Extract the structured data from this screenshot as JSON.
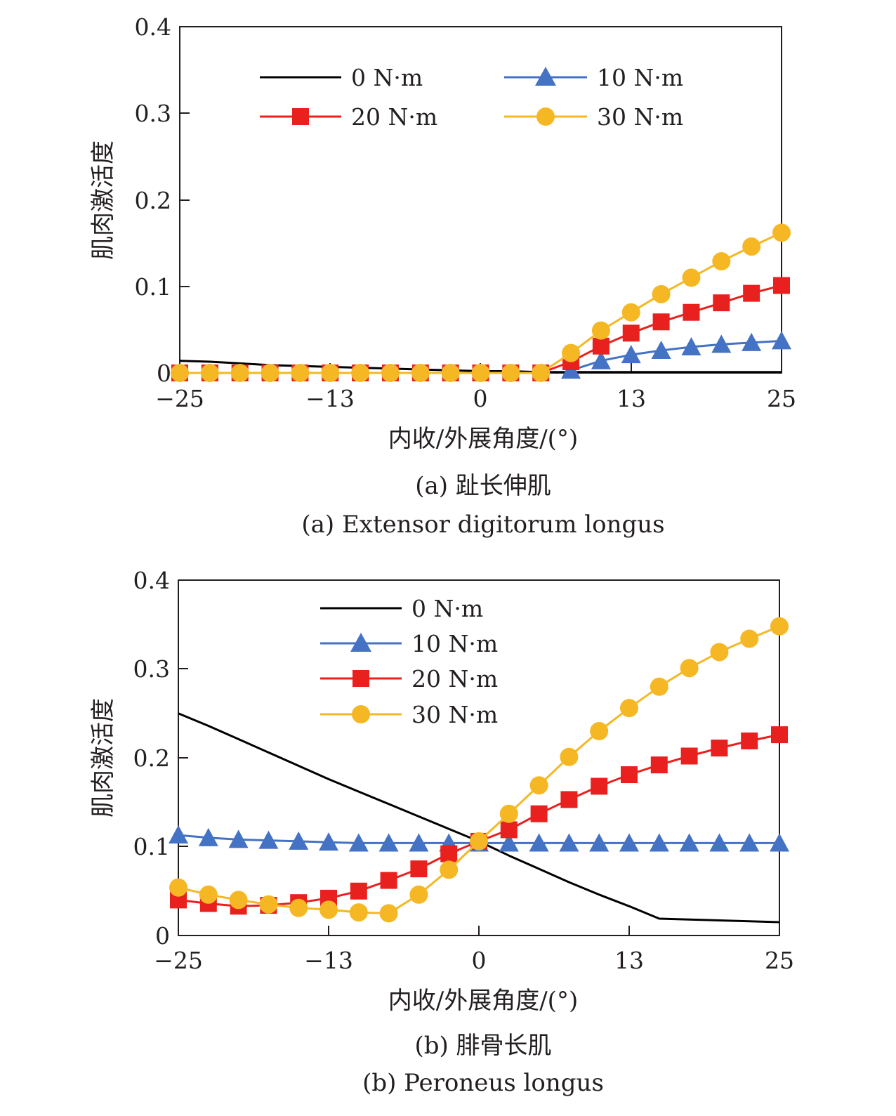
{
  "chart_data": [
    {
      "type": "line",
      "caption_zh": "(a) 趾长伸肌",
      "caption_en": "(a) Extensor digitorum longus",
      "xlabel": "内收/外展角度/(°)",
      "ylabel": "肌肉激活度",
      "xlim": [
        -25,
        25
      ],
      "ylim": [
        0,
        0.4
      ],
      "xticks": [
        "−25",
        "−13",
        "0",
        "13",
        "25"
      ],
      "yticks": [
        "0",
        "0.1",
        "0.2",
        "0.3",
        "0.4"
      ],
      "grid": false,
      "legend": "top, two columns",
      "x": [
        -25,
        -22.5,
        -20,
        -17.5,
        -15,
        -12.5,
        -10,
        -7.5,
        -5,
        -2.5,
        0,
        2.5,
        5,
        7.5,
        10,
        12.5,
        15,
        17.5,
        20,
        22.5,
        25
      ],
      "series": [
        {
          "name": "0 N·m",
          "color": "#000000",
          "marker": "none",
          "values": [
            0.014,
            0.013,
            0.011,
            0.009,
            0.008,
            0.007,
            0.006,
            0.005,
            0.004,
            0.003,
            0.002,
            0.002,
            0.001,
            0.001,
            0.001,
            0.001,
            0.001,
            0.001,
            0.001,
            0.001,
            0.001
          ]
        },
        {
          "name": "10 N·m",
          "color": "#4472c4",
          "marker": "triangle",
          "values": [
            null,
            null,
            null,
            null,
            null,
            null,
            null,
            null,
            null,
            null,
            null,
            null,
            null,
            0.003,
            0.014,
            0.021,
            0.026,
            0.03,
            0.033,
            0.035,
            0.037
          ]
        },
        {
          "name": "20 N·m",
          "color": "#e8211f",
          "marker": "square",
          "values": [
            0,
            0,
            0,
            0,
            0,
            0,
            0,
            0,
            0,
            0,
            0,
            0,
            0,
            0.013,
            0.031,
            0.046,
            0.059,
            0.07,
            0.081,
            0.092,
            0.101
          ]
        },
        {
          "name": "30 N·m",
          "color": "#f5b824",
          "marker": "circle",
          "values": [
            0,
            0,
            0,
            0,
            0,
            0,
            0,
            0,
            0,
            0,
            0,
            0,
            0,
            0.023,
            0.049,
            0.07,
            0.091,
            0.11,
            0.129,
            0.146,
            0.162
          ]
        }
      ]
    },
    {
      "type": "line",
      "caption_zh": "(b) 腓骨长肌",
      "caption_en": "(b) Peroneus longus",
      "xlabel": "内收/外展角度/(°)",
      "ylabel": "肌肉激活度",
      "xlim": [
        -25,
        25
      ],
      "ylim": [
        0,
        0.4
      ],
      "xticks": [
        "−25",
        "−13",
        "0",
        "13",
        "25"
      ],
      "yticks": [
        "0",
        "0.1",
        "0.2",
        "0.3",
        "0.4"
      ],
      "grid": false,
      "legend": "top, single column",
      "x": [
        -25,
        -22.5,
        -20,
        -17.5,
        -15,
        -12.5,
        -10,
        -7.5,
        -5,
        -2.5,
        0,
        2.5,
        5,
        7.5,
        10,
        12.5,
        15,
        17.5,
        20,
        22.5,
        25
      ],
      "series": [
        {
          "name": "0 N·m",
          "color": "#000000",
          "marker": "none",
          "values": [
            0.25,
            0.236,
            0.221,
            0.206,
            0.191,
            0.176,
            0.162,
            0.148,
            0.134,
            0.12,
            0.106,
            0.09,
            0.075,
            0.06,
            0.046,
            0.033,
            0.019,
            0.018,
            0.017,
            0.016,
            0.015
          ]
        },
        {
          "name": "10 N·m",
          "color": "#4472c4",
          "marker": "triangle",
          "values": [
            0.113,
            0.11,
            0.108,
            0.107,
            0.106,
            0.105,
            0.104,
            0.104,
            0.104,
            0.104,
            0.104,
            0.104,
            0.104,
            0.104,
            0.104,
            0.104,
            0.104,
            0.104,
            0.104,
            0.104,
            0.104
          ]
        },
        {
          "name": "20 N·m",
          "color": "#e8211f",
          "marker": "square",
          "values": [
            0.04,
            0.036,
            0.033,
            0.034,
            0.037,
            0.042,
            0.05,
            0.062,
            0.075,
            0.092,
            0.106,
            0.119,
            0.137,
            0.153,
            0.168,
            0.181,
            0.192,
            0.202,
            0.211,
            0.219,
            0.226
          ]
        },
        {
          "name": "30 N·m",
          "color": "#f5b824",
          "marker": "circle",
          "values": [
            0.054,
            0.046,
            0.04,
            0.035,
            0.031,
            0.029,
            0.026,
            0.025,
            0.046,
            0.074,
            0.106,
            0.137,
            0.169,
            0.201,
            0.23,
            0.256,
            0.28,
            0.301,
            0.319,
            0.334,
            0.348
          ]
        }
      ]
    }
  ]
}
